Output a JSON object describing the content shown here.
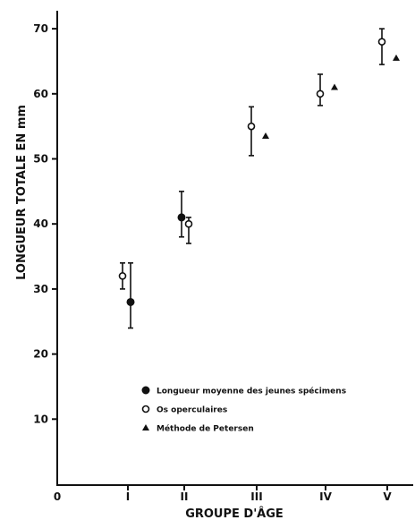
{
  "chart_data": {
    "type": "scatter",
    "xlabel": "GROUPE D'ÂGE",
    "ylabel": "LONGUEUR TOTALE EN mm",
    "categories": [
      "0",
      "I",
      "II",
      "III",
      "IV",
      "V"
    ],
    "yticks": [
      "10",
      "20",
      "30",
      "40",
      "50",
      "60",
      "70"
    ],
    "ylim": [
      0,
      73
    ],
    "grid": false,
    "legend_position": "bottom-right",
    "series": [
      {
        "name": "Longueur moyenne des jeunes spécimens",
        "marker": "filled-circle",
        "points": [
          {
            "group": "I",
            "y": 28,
            "low": 24,
            "high": 34
          },
          {
            "group": "II",
            "y": 41,
            "low": 38,
            "high": 45
          }
        ]
      },
      {
        "name": "Os operculaires",
        "marker": "open-circle",
        "points": [
          {
            "group": "I",
            "y": 32,
            "low": 30,
            "high": 34
          },
          {
            "group": "II",
            "y": 40,
            "low": 37,
            "high": 41
          },
          {
            "group": "III",
            "y": 55,
            "low": 50.5,
            "high": 58
          },
          {
            "group": "IV",
            "y": 60,
            "low": 58.2,
            "high": 63
          },
          {
            "group": "V",
            "y": 68,
            "low": 64.5,
            "high": 70
          }
        ]
      },
      {
        "name": "Méthode de Petersen",
        "marker": "triangle",
        "points": [
          {
            "group": "III",
            "y": 53.5
          },
          {
            "group": "IV",
            "y": 61
          },
          {
            "group": "V",
            "y": 65.5
          }
        ]
      }
    ]
  }
}
